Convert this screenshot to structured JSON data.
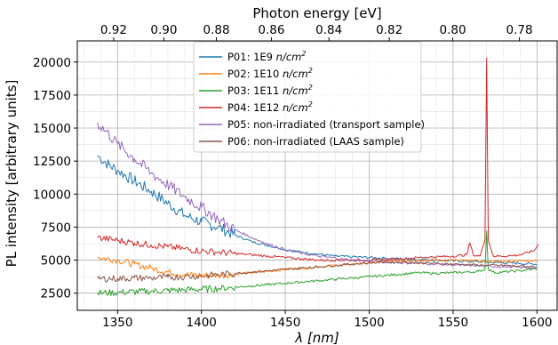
{
  "chart_data": {
    "type": "line",
    "xlabel": "λ [nm]",
    "ylabel": "PL intensity [arbitrary units]",
    "top_xlabel": "Photon energy [eV]",
    "xlim": [
      1326,
      1612
    ],
    "ylim": [
      1200,
      21600
    ],
    "x_ticks": [
      1350,
      1400,
      1450,
      1500,
      1550,
      1600
    ],
    "x_tick_labels": [
      "1350",
      "1400",
      "1450",
      "1500",
      "1550",
      "1600"
    ],
    "y_ticks": [
      2500,
      5000,
      7500,
      10000,
      12500,
      15000,
      17500,
      20000
    ],
    "y_tick_labels": [
      "2500",
      "5000",
      "7500",
      "10000",
      "12500",
      "15000",
      "17500",
      "20000"
    ],
    "top_ticks_eV": [
      0.92,
      0.9,
      0.88,
      0.86,
      0.84,
      0.82,
      0.8,
      0.78
    ],
    "top_tick_labels": [
      "0.92",
      "0.90",
      "0.88",
      "0.86",
      "0.84",
      "0.82",
      "0.80",
      "0.78"
    ],
    "grid": true,
    "legend_position": "top-center",
    "series": [
      {
        "name": "P01: 1E9 n/cm²",
        "legend_prefix": "P01: 1E9 ",
        "legend_unit": "n/cm",
        "legend_sup": "2",
        "color": "#1f77b4",
        "x": [
          1338,
          1345,
          1350,
          1360,
          1370,
          1380,
          1390,
          1400,
          1410,
          1420,
          1430,
          1440,
          1450,
          1460,
          1470,
          1480,
          1490,
          1500,
          1510,
          1520,
          1530,
          1540,
          1550,
          1560,
          1570,
          1580,
          1590,
          1600
        ],
        "y": [
          12900,
          12200,
          11800,
          11000,
          10200,
          9300,
          8400,
          7900,
          7500,
          6900,
          6400,
          6100,
          5800,
          5600,
          5450,
          5300,
          5250,
          5200,
          5150,
          5100,
          5050,
          5000,
          4950,
          4900,
          4850,
          4800,
          4750,
          4700
        ]
      },
      {
        "name": "P02: 1E10 n/cm²",
        "legend_prefix": "P02: 1E10 ",
        "legend_unit": "n/cm",
        "legend_sup": "2",
        "color": "#ff7f0e",
        "x": [
          1338,
          1350,
          1360,
          1370,
          1380,
          1390,
          1400,
          1410,
          1420,
          1430,
          1440,
          1450,
          1460,
          1470,
          1480,
          1490,
          1500,
          1510,
          1520,
          1530,
          1540,
          1550,
          1560,
          1570,
          1580,
          1590,
          1600
        ],
        "y": [
          5200,
          5000,
          4700,
          4400,
          4100,
          3900,
          3850,
          3850,
          3950,
          4050,
          4150,
          4300,
          4400,
          4500,
          4600,
          4700,
          4800,
          4900,
          4950,
          5000,
          5000,
          5000,
          4950,
          4900,
          4900,
          4950,
          5000
        ]
      },
      {
        "name": "P03: 1E11 n/cm²",
        "legend_prefix": "P03: 1E11 ",
        "legend_unit": "n/cm",
        "legend_sup": "2",
        "color": "#2ca02c",
        "x": [
          1338,
          1350,
          1360,
          1370,
          1380,
          1390,
          1400,
          1410,
          1420,
          1430,
          1440,
          1450,
          1460,
          1470,
          1480,
          1490,
          1500,
          1510,
          1520,
          1530,
          1540,
          1550,
          1560,
          1565,
          1569,
          1570,
          1571,
          1575,
          1580,
          1590,
          1600
        ],
        "y": [
          2500,
          2550,
          2600,
          2650,
          2700,
          2750,
          2800,
          2850,
          2950,
          3050,
          3150,
          3250,
          3350,
          3450,
          3550,
          3650,
          3750,
          3850,
          3950,
          4050,
          4000,
          4050,
          4100,
          4150,
          4300,
          7200,
          4300,
          4050,
          4100,
          4200,
          4350
        ]
      },
      {
        "name": "P04: 1E12 n/cm²",
        "legend_prefix": "P04: 1E12 ",
        "legend_unit": "n/cm",
        "legend_sup": "2",
        "color": "#d62728",
        "x": [
          1338,
          1350,
          1360,
          1370,
          1380,
          1390,
          1400,
          1410,
          1420,
          1430,
          1440,
          1450,
          1460,
          1470,
          1480,
          1490,
          1500,
          1510,
          1520,
          1530,
          1540,
          1550,
          1558,
          1560,
          1562,
          1566,
          1569,
          1570,
          1571,
          1574,
          1580,
          1590,
          1598,
          1601
        ],
        "y": [
          6700,
          6500,
          6300,
          6150,
          6000,
          5850,
          5700,
          5600,
          5500,
          5400,
          5300,
          5200,
          5100,
          5000,
          5000,
          5000,
          5000,
          5050,
          5100,
          5200,
          5250,
          5300,
          5400,
          6300,
          5400,
          5300,
          6500,
          20300,
          6500,
          5300,
          5300,
          5400,
          5700,
          6200
        ]
      },
      {
        "name": "P05: non-irradiated (transport sample)",
        "color": "#9467bd",
        "x": [
          1338,
          1345,
          1350,
          1360,
          1370,
          1380,
          1390,
          1400,
          1410,
          1420,
          1430,
          1440,
          1450,
          1460,
          1470,
          1480,
          1490,
          1500,
          1510,
          1520,
          1530,
          1540,
          1550,
          1560,
          1570,
          1580,
          1590,
          1600
        ],
        "y": [
          15400,
          14500,
          13800,
          12700,
          11600,
          10700,
          9800,
          9000,
          8100,
          7300,
          6700,
          6200,
          5800,
          5500,
          5300,
          5150,
          5000,
          4950,
          4850,
          4800,
          4750,
          4700,
          4650,
          4600,
          4550,
          4500,
          4450,
          4400
        ]
      },
      {
        "name": "P06: non-irradiated (LAAS sample)",
        "color": "#8c564b",
        "x": [
          1338,
          1350,
          1360,
          1370,
          1380,
          1390,
          1400,
          1410,
          1420,
          1430,
          1440,
          1450,
          1460,
          1470,
          1480,
          1490,
          1500,
          1510,
          1520,
          1530,
          1540,
          1550,
          1560,
          1570,
          1580,
          1590,
          1600
        ],
        "y": [
          3600,
          3600,
          3650,
          3650,
          3700,
          3750,
          3800,
          3900,
          4000,
          4100,
          4200,
          4300,
          4400,
          4500,
          4600,
          4700,
          4800,
          4850,
          4850,
          4800,
          4750,
          4700,
          4650,
          4600,
          4600,
          4550,
          4500
        ]
      }
    ]
  }
}
